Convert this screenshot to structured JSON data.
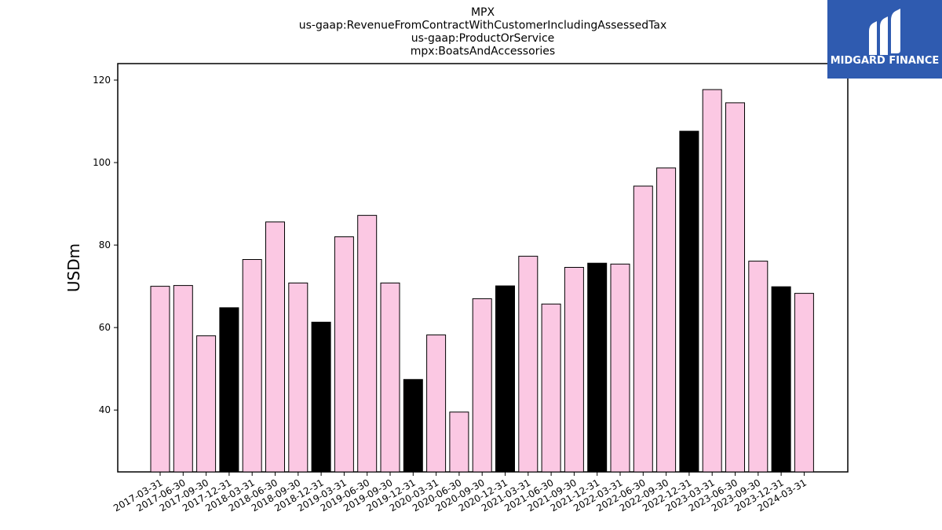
{
  "chart_data": {
    "type": "bar",
    "title_lines": [
      "MPX",
      "us-gaap:RevenueFromContractWithCustomerIncludingAssessedTax",
      "us-gaap:ProductOrService",
      "mpx:BoatsAndAccessories"
    ],
    "xlabel": "",
    "ylabel": "USDm",
    "ylim": [
      25,
      124
    ],
    "yticks": [
      40,
      60,
      80,
      100,
      120
    ],
    "grid": false,
    "legend": "none",
    "colors": {
      "quarter": "#fbc8e3",
      "year_end": "#000000",
      "edge": "#000000"
    },
    "categories": [
      "2017-03-31",
      "2017-06-30",
      "2017-09-30",
      "2017-12-31",
      "2018-03-31",
      "2018-06-30",
      "2018-09-30",
      "2018-12-31",
      "2019-03-31",
      "2019-06-30",
      "2019-09-30",
      "2019-12-31",
      "2020-03-31",
      "2020-06-30",
      "2020-09-30",
      "2020-12-31",
      "2021-03-31",
      "2021-06-30",
      "2021-09-30",
      "2021-12-31",
      "2022-03-31",
      "2022-06-30",
      "2022-09-30",
      "2022-12-31",
      "2023-03-31",
      "2023-06-30",
      "2023-09-30",
      "2023-12-31",
      "2024-03-31"
    ],
    "values": [
      70.0,
      70.2,
      58.0,
      64.8,
      76.5,
      85.6,
      70.8,
      61.3,
      82.0,
      87.2,
      70.8,
      47.4,
      58.2,
      39.5,
      67.0,
      70.1,
      77.3,
      65.7,
      74.6,
      75.6,
      75.4,
      94.3,
      98.7,
      107.6,
      117.7,
      114.5,
      76.1,
      69.9,
      68.3
    ],
    "highlight_year_end": [
      false,
      false,
      false,
      true,
      false,
      false,
      false,
      true,
      false,
      false,
      false,
      true,
      false,
      false,
      false,
      true,
      false,
      false,
      false,
      true,
      false,
      false,
      false,
      true,
      false,
      false,
      false,
      true,
      false
    ]
  },
  "logo": {
    "text": "MIDGARD FINANCE",
    "bg_color": "#2f5bb0"
  }
}
